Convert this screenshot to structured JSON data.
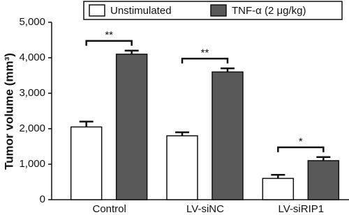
{
  "chart_data": {
    "type": "bar",
    "y_label": "Tumor volume (mm³)",
    "categories": [
      "Control",
      "LV-siNC",
      "LV-siRIP1"
    ],
    "series": [
      {
        "name": "Unstimulated",
        "color": "#ffffff",
        "values": [
          2050,
          1800,
          600
        ],
        "errors": [
          150,
          100,
          100
        ]
      },
      {
        "name": "TNF-α (2 μg/kg)",
        "color": "#595959",
        "values": [
          4100,
          3600,
          1100
        ],
        "errors": [
          100,
          100,
          100
        ]
      }
    ],
    "annotations": [
      "**",
      "**",
      "*"
    ],
    "ylim": [
      0,
      5000
    ],
    "yticks": [
      0,
      {
        "value": 1000,
        "label": "1,000"
      },
      {
        "value": 2000,
        "label": "2,000"
      },
      {
        "value": 3000,
        "label": "3,000"
      },
      {
        "value": 4000,
        "label": "4,000"
      },
      {
        "value": 5000,
        "label": "5,000"
      }
    ],
    "legend": "top"
  }
}
